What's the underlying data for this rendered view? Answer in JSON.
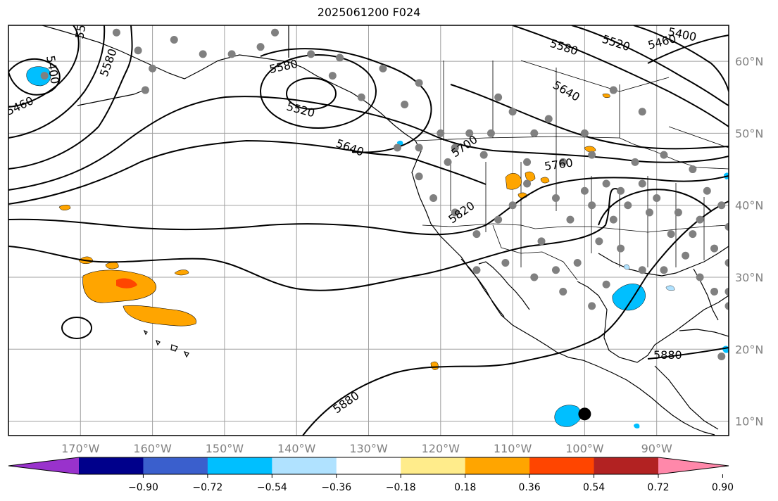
{
  "title": "2025061200 F024",
  "map": {
    "lon_range": [
      -180,
      -80
    ],
    "lat_range": [
      8,
      65
    ],
    "lon_ticks": [
      {
        "value": -170,
        "label": "170°W"
      },
      {
        "value": -160,
        "label": "160°W"
      },
      {
        "value": -150,
        "label": "150°W"
      },
      {
        "value": -140,
        "label": "140°W"
      },
      {
        "value": -130,
        "label": "130°W"
      },
      {
        "value": -120,
        "label": "120°W"
      },
      {
        "value": -110,
        "label": "110°W"
      },
      {
        "value": -100,
        "label": "100°W"
      },
      {
        "value": -90,
        "label": "90°W"
      }
    ],
    "lat_ticks": [
      {
        "value": 60,
        "label": "60°N"
      },
      {
        "value": 50,
        "label": "50°N"
      },
      {
        "value": 40,
        "label": "40°N"
      },
      {
        "value": 30,
        "label": "30°N"
      },
      {
        "value": 20,
        "label": "20°N"
      },
      {
        "value": 10,
        "label": "10°N"
      }
    ],
    "grid": true,
    "contour_labels": [
      "5400",
      "5460",
      "5520",
      "5580",
      "5640",
      "5700",
      "5760",
      "5820",
      "5880"
    ],
    "stations": "gray-dots",
    "marker": {
      "name": "black-dot",
      "lon": -100,
      "lat": 11
    }
  },
  "colorbar": {
    "colors": [
      "#9932CC",
      "#00008B",
      "#3A5FCD",
      "#00BFFF",
      "#B0E2FF",
      "#FFFFFF",
      "#FFEC8B",
      "#FFA500",
      "#FF4500",
      "#B22222",
      "#FF88AA"
    ],
    "tick_labels": [
      "−0.90",
      "−0.72",
      "−0.54",
      "−0.36",
      "−0.18",
      "0.18",
      "0.36",
      "0.54",
      "0.72",
      "0.90"
    ]
  }
}
